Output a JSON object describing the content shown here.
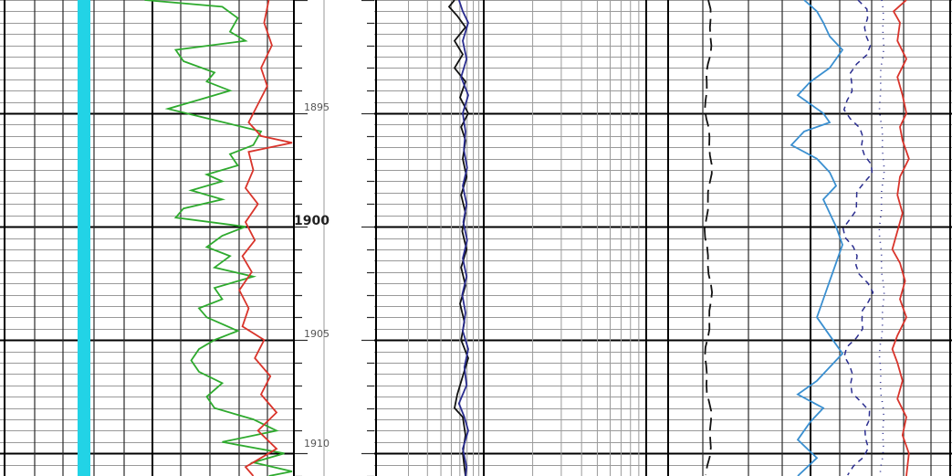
{
  "depth_track": {
    "major_label": "1900",
    "minor_labels": [
      "1895",
      "1905",
      "1910"
    ]
  },
  "colors": {
    "caliper_fill": "#22d3e6",
    "gamma_green": "#2eaa2e",
    "red_curve": "#d9342b",
    "blue_navy": "#2a2d8f",
    "light_blue": "#3a8fd0",
    "black": "#111111"
  },
  "chart_data": {
    "type": "line",
    "title": "",
    "xlabel": "",
    "ylabel": "",
    "y_axis": "depth",
    "ylim": [
      1890,
      1911
    ],
    "major_depth_ticks": [
      1895,
      1900,
      1905,
      1910
    ],
    "tracks": [
      {
        "name": "",
        "series": [
          {
            "name": "",
            "color": "#2eaa2e",
            "style": "solid",
            "x_range": [
              0,
              1
            ],
            "points": [
              [
                0.05,
                1890.0
              ],
              [
                0.55,
                1890.3
              ],
              [
                0.65,
                1890.8
              ],
              [
                0.6,
                1891.4
              ],
              [
                0.7,
                1891.8
              ],
              [
                0.25,
                1892.2
              ],
              [
                0.3,
                1892.7
              ],
              [
                0.5,
                1893.2
              ],
              [
                0.45,
                1893.6
              ],
              [
                0.6,
                1894.0
              ],
              [
                0.4,
                1894.4
              ],
              [
                0.2,
                1894.8
              ],
              [
                0.5,
                1895.3
              ],
              [
                0.8,
                1895.8
              ],
              [
                0.75,
                1896.4
              ],
              [
                0.6,
                1896.8
              ],
              [
                0.65,
                1897.3
              ],
              [
                0.45,
                1897.7
              ],
              [
                0.55,
                1898.0
              ],
              [
                0.35,
                1898.4
              ],
              [
                0.55,
                1898.8
              ],
              [
                0.3,
                1899.2
              ],
              [
                0.25,
                1899.6
              ],
              [
                0.7,
                1900.0
              ],
              [
                0.55,
                1900.4
              ],
              [
                0.45,
                1900.9
              ],
              [
                0.6,
                1901.3
              ],
              [
                0.5,
                1901.8
              ],
              [
                0.75,
                1902.2
              ],
              [
                0.5,
                1902.7
              ],
              [
                0.55,
                1903.2
              ],
              [
                0.4,
                1903.6
              ],
              [
                0.45,
                1904.0
              ],
              [
                0.65,
                1904.6
              ],
              [
                0.5,
                1905.0
              ],
              [
                0.4,
                1905.4
              ],
              [
                0.35,
                1905.9
              ],
              [
                0.4,
                1906.4
              ],
              [
                0.55,
                1906.9
              ],
              [
                0.45,
                1907.5
              ],
              [
                0.5,
                1908.0
              ],
              [
                0.75,
                1908.5
              ],
              [
                0.9,
                1909.0
              ],
              [
                0.55,
                1909.5
              ],
              [
                0.95,
                1910.0
              ],
              [
                0.75,
                1910.4
              ],
              [
                1.0,
                1910.8
              ],
              [
                0.85,
                1911.0
              ]
            ]
          },
          {
            "name": "",
            "color": "#d9342b",
            "style": "solid",
            "x_range": [
              0,
              1
            ],
            "points": [
              [
                0.85,
                1890.0
              ],
              [
                0.82,
                1891.0
              ],
              [
                0.87,
                1892.0
              ],
              [
                0.8,
                1893.0
              ],
              [
                0.84,
                1893.8
              ],
              [
                0.78,
                1894.6
              ],
              [
                0.72,
                1895.4
              ],
              [
                0.8,
                1896.0
              ],
              [
                1.0,
                1896.3
              ],
              [
                0.72,
                1896.7
              ],
              [
                0.75,
                1897.5
              ],
              [
                0.7,
                1898.3
              ],
              [
                0.78,
                1899.0
              ],
              [
                0.7,
                1899.8
              ],
              [
                0.76,
                1900.6
              ],
              [
                0.68,
                1901.3
              ],
              [
                0.74,
                1902.0
              ],
              [
                0.66,
                1902.8
              ],
              [
                0.72,
                1903.6
              ],
              [
                0.68,
                1904.4
              ],
              [
                0.82,
                1905.0
              ],
              [
                0.76,
                1905.8
              ],
              [
                0.86,
                1906.6
              ],
              [
                0.8,
                1907.4
              ],
              [
                0.9,
                1908.2
              ],
              [
                0.78,
                1909.0
              ],
              [
                0.9,
                1909.8
              ],
              [
                0.7,
                1910.6
              ],
              [
                0.75,
                1911.0
              ]
            ]
          }
        ]
      },
      {
        "name": "",
        "series": [
          {
            "name": "",
            "color": "#111111",
            "style": "solid",
            "x_range": [
              0,
              1
            ],
            "points": [
              [
                0.3,
                1890.0
              ],
              [
                0.2,
                1890.3
              ],
              [
                0.35,
                1890.7
              ],
              [
                0.5,
                1891.2
              ],
              [
                0.3,
                1891.8
              ],
              [
                0.45,
                1892.4
              ],
              [
                0.3,
                1893.0
              ],
              [
                0.5,
                1893.6
              ],
              [
                0.4,
                1894.3
              ],
              [
                0.55,
                1895.0
              ],
              [
                0.42,
                1895.6
              ],
              [
                0.5,
                1896.2
              ],
              [
                0.45,
                1897.0
              ],
              [
                0.52,
                1897.8
              ],
              [
                0.42,
                1898.6
              ],
              [
                0.5,
                1899.4
              ],
              [
                0.44,
                1900.2
              ],
              [
                0.52,
                1901.0
              ],
              [
                0.42,
                1901.8
              ],
              [
                0.5,
                1902.6
              ],
              [
                0.4,
                1903.4
              ],
              [
                0.48,
                1904.2
              ],
              [
                0.42,
                1905.0
              ],
              [
                0.55,
                1905.8
              ],
              [
                0.45,
                1906.6
              ],
              [
                0.35,
                1907.4
              ],
              [
                0.3,
                1908.0
              ],
              [
                0.45,
                1908.4
              ],
              [
                0.5,
                1909.2
              ],
              [
                0.45,
                1910.0
              ],
              [
                0.5,
                1911.0
              ]
            ]
          },
          {
            "name": "",
            "color": "#2a2d8f",
            "style": "solid",
            "x_range": [
              0,
              1
            ],
            "points": [
              [
                0.38,
                1890.0
              ],
              [
                0.45,
                1890.5
              ],
              [
                0.55,
                1891.0
              ],
              [
                0.45,
                1891.8
              ],
              [
                0.52,
                1892.6
              ],
              [
                0.42,
                1893.4
              ],
              [
                0.55,
                1894.2
              ],
              [
                0.45,
                1895.0
              ],
              [
                0.5,
                1895.8
              ],
              [
                0.47,
                1896.6
              ],
              [
                0.53,
                1897.4
              ],
              [
                0.45,
                1898.2
              ],
              [
                0.52,
                1899.0
              ],
              [
                0.46,
                1899.8
              ],
              [
                0.53,
                1900.6
              ],
              [
                0.45,
                1901.4
              ],
              [
                0.52,
                1902.2
              ],
              [
                0.44,
                1903.0
              ],
              [
                0.5,
                1903.8
              ],
              [
                0.45,
                1904.6
              ],
              [
                0.55,
                1905.4
              ],
              [
                0.48,
                1906.2
              ],
              [
                0.52,
                1907.0
              ],
              [
                0.38,
                1907.8
              ],
              [
                0.48,
                1908.4
              ],
              [
                0.55,
                1909.0
              ],
              [
                0.45,
                1909.8
              ],
              [
                0.52,
                1910.6
              ],
              [
                0.5,
                1911.0
              ]
            ]
          }
        ]
      },
      {
        "name": "",
        "series": [
          {
            "name": "",
            "color": "#3a8fd0",
            "style": "solid",
            "x_range": [
              0,
              1
            ],
            "points": [
              [
                0.15,
                1890.0
              ],
              [
                0.25,
                1890.5
              ],
              [
                0.3,
                1891.0
              ],
              [
                0.35,
                1891.6
              ],
              [
                0.45,
                1892.2
              ],
              [
                0.35,
                1893.0
              ],
              [
                0.2,
                1893.6
              ],
              [
                0.1,
                1894.2
              ],
              [
                0.3,
                1895.0
              ],
              [
                0.35,
                1895.4
              ],
              [
                0.15,
                1895.8
              ],
              [
                0.05,
                1896.4
              ],
              [
                0.25,
                1897.0
              ],
              [
                0.35,
                1897.6
              ],
              [
                0.4,
                1898.2
              ],
              [
                0.3,
                1898.8
              ],
              [
                0.35,
                1899.4
              ],
              [
                0.4,
                1900.0
              ],
              [
                0.45,
                1900.8
              ],
              [
                0.4,
                1901.6
              ],
              [
                0.35,
                1902.4
              ],
              [
                0.3,
                1903.2
              ],
              [
                0.25,
                1904.0
              ],
              [
                0.35,
                1904.8
              ],
              [
                0.45,
                1905.6
              ],
              [
                0.35,
                1906.2
              ],
              [
                0.25,
                1906.8
              ],
              [
                0.1,
                1907.4
              ],
              [
                0.3,
                1908.0
              ],
              [
                0.2,
                1908.6
              ],
              [
                0.1,
                1909.4
              ],
              [
                0.25,
                1910.2
              ],
              [
                0.1,
                1911.0
              ]
            ]
          },
          {
            "name": "",
            "color": "#d9342b",
            "style": "solid",
            "x_range": [
              0,
              1
            ],
            "points": [
              [
                0.95,
                1890.0
              ],
              [
                0.85,
                1890.5
              ],
              [
                0.9,
                1891.0
              ],
              [
                0.88,
                1891.8
              ],
              [
                0.95,
                1892.6
              ],
              [
                0.88,
                1893.4
              ],
              [
                0.92,
                1894.2
              ],
              [
                0.95,
                1895.0
              ],
              [
                0.9,
                1895.6
              ],
              [
                0.92,
                1896.2
              ],
              [
                0.97,
                1897.0
              ],
              [
                0.9,
                1897.8
              ],
              [
                0.88,
                1898.6
              ],
              [
                0.92,
                1899.4
              ],
              [
                0.88,
                1900.2
              ],
              [
                0.84,
                1901.0
              ],
              [
                0.9,
                1901.6
              ],
              [
                0.94,
                1902.4
              ],
              [
                0.9,
                1903.2
              ],
              [
                0.95,
                1904.0
              ],
              [
                0.88,
                1904.8
              ],
              [
                0.84,
                1905.4
              ],
              [
                0.88,
                1906.0
              ],
              [
                0.92,
                1906.8
              ],
              [
                0.88,
                1907.6
              ],
              [
                0.95,
                1908.4
              ],
              [
                0.92,
                1909.2
              ],
              [
                0.97,
                1910.0
              ],
              [
                0.95,
                1911.0
              ]
            ]
          }
        ]
      }
    ]
  }
}
